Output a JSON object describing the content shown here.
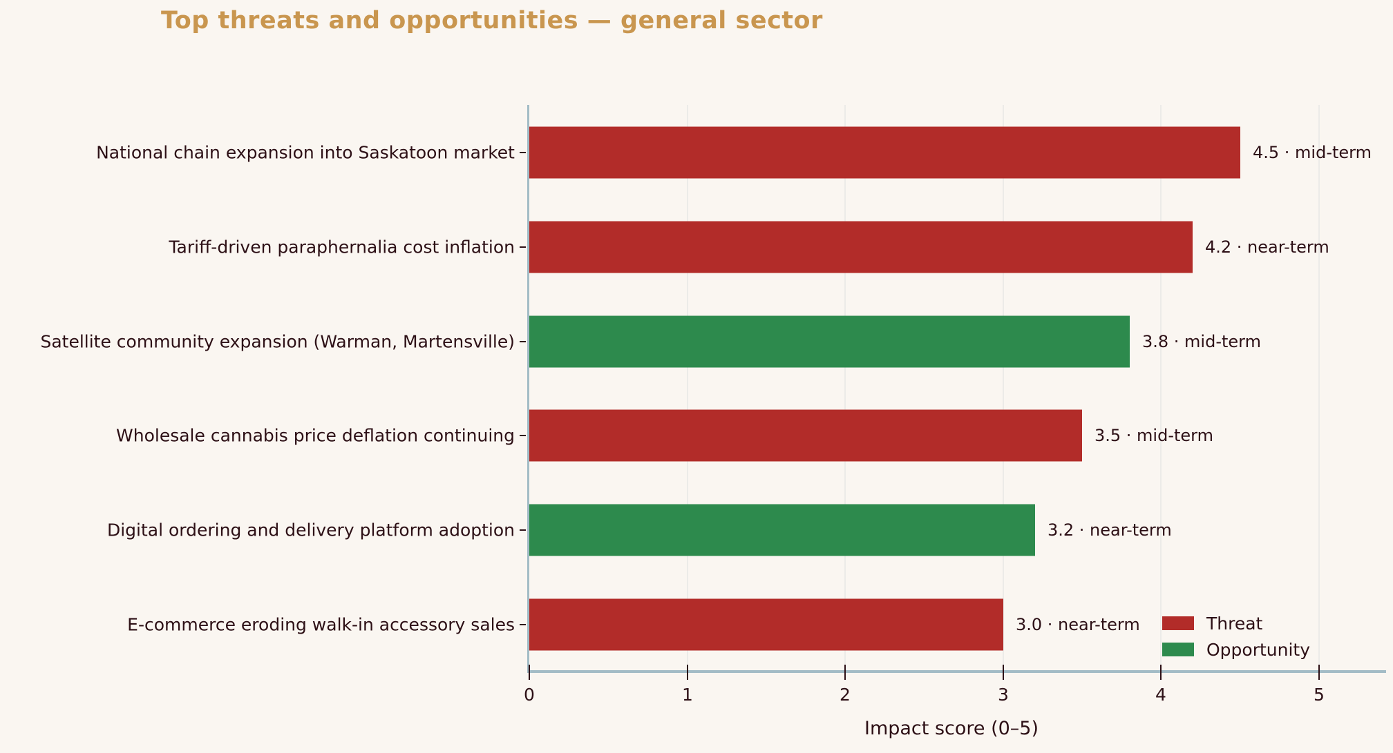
{
  "chart_data": {
    "type": "bar",
    "orientation": "horizontal",
    "title": "Top threats and opportunities — general sector",
    "xlabel": "Impact score (0–5)",
    "xlim": [
      0,
      5.36
    ],
    "xticks": [
      "0",
      "1",
      "2",
      "3",
      "4",
      "5"
    ],
    "grid": "vertical-at-integers",
    "legend_position": "lower-right-inside",
    "legend": [
      {
        "label": "Threat",
        "color": "#b22c29"
      },
      {
        "label": "Opportunity",
        "color": "#2d8a4d"
      }
    ],
    "bars": [
      {
        "label": "National chain expansion into Saskatoon market",
        "value": 4.5,
        "value_label": "4.5",
        "horizon": "mid-term",
        "series": "Threat",
        "annotation": "4.5  ·  mid-term"
      },
      {
        "label": "Tariff-driven paraphernalia cost inflation",
        "value": 4.2,
        "value_label": "4.2",
        "horizon": "near-term",
        "series": "Threat",
        "annotation": "4.2  ·  near-term"
      },
      {
        "label": "Satellite community expansion (Warman, Martensville)",
        "value": 3.8,
        "value_label": "3.8",
        "horizon": "mid-term",
        "series": "Opportunity",
        "annotation": "3.8  ·  mid-term"
      },
      {
        "label": "Wholesale cannabis price deflation continuing",
        "value": 3.5,
        "value_label": "3.5",
        "horizon": "mid-term",
        "series": "Threat",
        "annotation": "3.5  ·  mid-term"
      },
      {
        "label": "Digital ordering and delivery platform adoption",
        "value": 3.2,
        "value_label": "3.2",
        "horizon": "near-term",
        "series": "Opportunity",
        "annotation": "3.2  ·  near-term"
      },
      {
        "label": "E-commerce eroding walk-in accessory sales",
        "value": 3.0,
        "value_label": "3.0",
        "horizon": "near-term",
        "series": "Threat",
        "annotation": "3.0  ·  near-term"
      }
    ]
  },
  "colors": {
    "background": "#faf6f1",
    "title": "#c9964f",
    "text": "#2d1016",
    "spine": "#a3bcc6",
    "grid": "#ecebe8",
    "tick": "#2d1016",
    "threat": "#b22c29",
    "opportunity": "#2d8a4d"
  }
}
